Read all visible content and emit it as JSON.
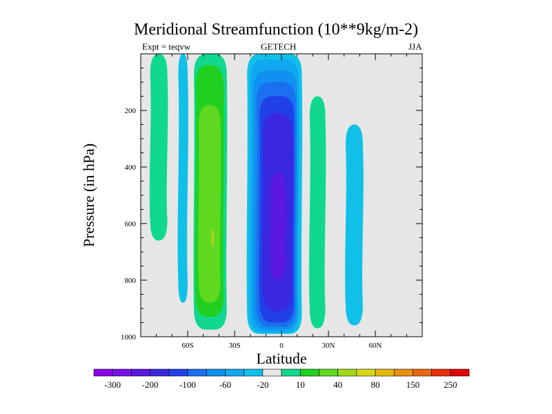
{
  "header": {
    "title": "Meridional Streamfunction (10**9kg/m-2)",
    "left_label": "Expt = teqvw",
    "center_label": "GETECH",
    "right_label": "JJA"
  },
  "chart_data": {
    "type": "filled-contour",
    "title": "Meridional Streamfunction (10**9kg/m-2)",
    "xlabel": "Latitude",
    "ylabel": "Pressure (in hPa)",
    "xlim": [
      -90,
      90
    ],
    "ylim": [
      1000,
      0
    ],
    "x_ticks": [
      {
        "value": -60,
        "label": "60S"
      },
      {
        "value": -30,
        "label": "30S"
      },
      {
        "value": 0,
        "label": "0"
      },
      {
        "value": 30,
        "label": "30N"
      },
      {
        "value": 60,
        "label": "60N"
      }
    ],
    "y_ticks": [
      {
        "value": 200,
        "label": "200"
      },
      {
        "value": 400,
        "label": "400"
      },
      {
        "value": 600,
        "label": "600"
      },
      {
        "value": 800,
        "label": "800"
      },
      {
        "value": 1000,
        "label": "1000"
      }
    ],
    "background_color": "#e6e6e6",
    "colorbar": {
      "colors": [
        "#8a00e8",
        "#7a10e8",
        "#5a18e0",
        "#3a28e0",
        "#2040e8",
        "#1a70f0",
        "#1090f0",
        "#10a8f0",
        "#10c0e8",
        "#e6e6e6",
        "#10d890",
        "#20d020",
        "#60d820",
        "#a0d818",
        "#d8d818",
        "#e8b810",
        "#e89010",
        "#e86810",
        "#e83010",
        "#e00000"
      ],
      "labels": [
        {
          "after": 0,
          "text": "-300"
        },
        {
          "after": 2,
          "text": "-200"
        },
        {
          "after": 4,
          "text": "-100"
        },
        {
          "after": 6,
          "text": "-60"
        },
        {
          "after": 8,
          "text": "-20"
        },
        {
          "after": 10,
          "text": "10"
        },
        {
          "after": 12,
          "text": "40"
        },
        {
          "after": 14,
          "text": "80"
        },
        {
          "after": 16,
          "text": "150"
        },
        {
          "after": 18,
          "text": "250"
        }
      ]
    },
    "features": [
      {
        "name": "southern-hadley-cell",
        "lat_min": -22,
        "lat_max": 12,
        "p_top": 0,
        "p_bottom": 990,
        "levels": [
          {
            "color": "#10c0e8",
            "lat_min": -22,
            "lat_max": 13,
            "p_top": 0,
            "p_bottom": 990
          },
          {
            "color": "#10a8f0",
            "lat_min": -20,
            "lat_max": 11,
            "p_top": 20,
            "p_bottom": 985
          },
          {
            "color": "#1090f0",
            "lat_min": -18,
            "lat_max": 10,
            "p_top": 60,
            "p_bottom": 975
          },
          {
            "color": "#1a70f0",
            "lat_min": -16,
            "lat_max": 9,
            "p_top": 100,
            "p_bottom": 965
          },
          {
            "color": "#2040e8",
            "lat_min": -14,
            "lat_max": 8,
            "p_top": 150,
            "p_bottom": 950
          },
          {
            "color": "#3a28e0",
            "lat_min": -12,
            "lat_max": 7,
            "p_top": 210,
            "p_bottom": 910
          },
          {
            "color": "#5a18e0",
            "lat_min": -7,
            "lat_max": 3,
            "p_top": 420,
            "p_bottom": 800
          }
        ]
      },
      {
        "name": "southern-ferrel-cell",
        "lat_min": -55,
        "lat_max": -35,
        "p_top": 0,
        "p_bottom": 975,
        "levels": [
          {
            "color": "#10d890",
            "lat_min": -56,
            "lat_max": -35,
            "p_top": 0,
            "p_bottom": 975
          },
          {
            "color": "#20d020",
            "lat_min": -55,
            "lat_max": -37,
            "p_top": 40,
            "p_bottom": 930
          },
          {
            "color": "#60d820",
            "lat_min": -53,
            "lat_max": -39,
            "p_top": 180,
            "p_bottom": 880
          },
          {
            "color": "#a0d818",
            "lat_min": -45,
            "lat_max": -43,
            "p_top": 620,
            "p_bottom": 680
          }
        ]
      },
      {
        "name": "polar-cell-south",
        "lat_min": -84,
        "lat_max": -73,
        "p_top": 0,
        "p_bottom": 660,
        "color": "#10d890"
      },
      {
        "name": "polar-edge-south",
        "lat_min": -66,
        "lat_max": -60,
        "p_top": 0,
        "p_bottom": 880,
        "color": "#10c0e8"
      },
      {
        "name": "northern-cell",
        "lat_min": 18,
        "lat_max": 28,
        "p_top": 150,
        "p_bottom": 970,
        "color": "#10d890"
      },
      {
        "name": "northern-ferrel-cell",
        "lat_min": 41,
        "lat_max": 52,
        "p_top": 250,
        "p_bottom": 960,
        "color": "#10c0e8"
      }
    ]
  }
}
